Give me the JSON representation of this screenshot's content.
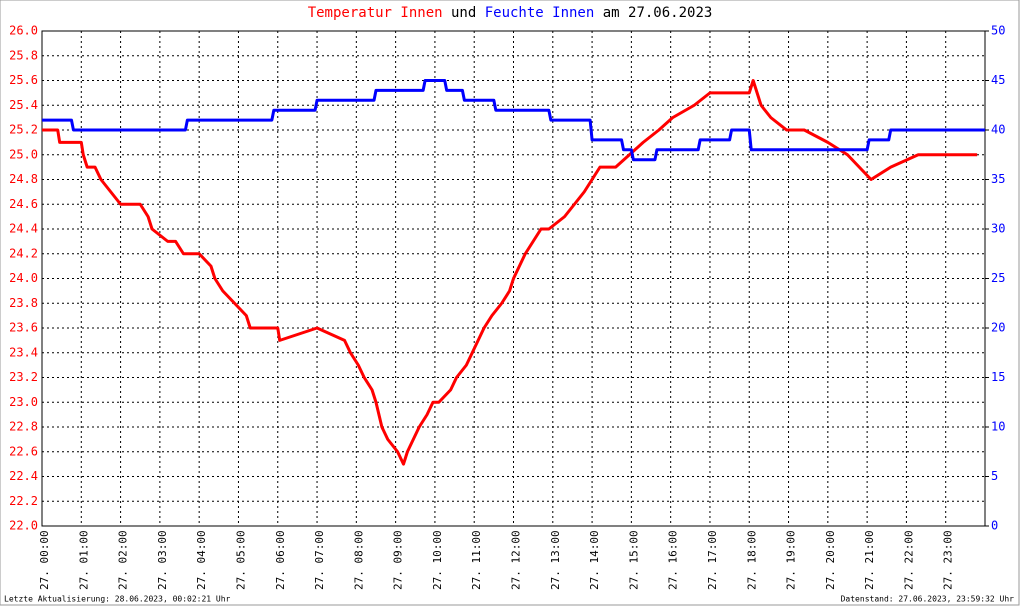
{
  "chart_data": {
    "type": "line",
    "title_connector": "und",
    "title_suffix": "am 27.06.2023",
    "footer_left": "Letzte Aktualisierung: 28.06.2023, 00:02:21 Uhr",
    "footer_right": "Datenstand: 27.06.2023, 23:59:32 Uhr",
    "grid": true,
    "xlim": [
      0,
      24
    ],
    "xticks": [
      {
        "value": 0,
        "label": "27. 00:00"
      },
      {
        "value": 1,
        "label": "27. 01:00"
      },
      {
        "value": 2,
        "label": "27. 02:00"
      },
      {
        "value": 3,
        "label": "27. 03:00"
      },
      {
        "value": 4,
        "label": "27. 04:00"
      },
      {
        "value": 5,
        "label": "27. 05:00"
      },
      {
        "value": 6,
        "label": "27. 06:00"
      },
      {
        "value": 7,
        "label": "27. 07:00"
      },
      {
        "value": 8,
        "label": "27. 08:00"
      },
      {
        "value": 9,
        "label": "27. 09:00"
      },
      {
        "value": 10,
        "label": "27. 10:00"
      },
      {
        "value": 11,
        "label": "27. 11:00"
      },
      {
        "value": 12,
        "label": "27. 12:00"
      },
      {
        "value": 13,
        "label": "27. 13:00"
      },
      {
        "value": 14,
        "label": "27. 14:00"
      },
      {
        "value": 15,
        "label": "27. 15:00"
      },
      {
        "value": 16,
        "label": "27. 16:00"
      },
      {
        "value": 17,
        "label": "27. 17:00"
      },
      {
        "value": 18,
        "label": "27. 18:00"
      },
      {
        "value": 19,
        "label": "27. 19:00"
      },
      {
        "value": 20,
        "label": "27. 20:00"
      },
      {
        "value": 21,
        "label": "27. 21:00"
      },
      {
        "value": 22,
        "label": "27. 22:00"
      },
      {
        "value": 23,
        "label": "27. 23:00"
      }
    ],
    "ylim": [
      22,
      26
    ],
    "yticks": [
      {
        "value": 22,
        "label": "22.0"
      },
      22.2,
      22.4,
      22.6,
      22.8,
      {
        "value": 23,
        "label": "23.0"
      },
      23.2,
      23.4,
      23.6,
      23.8,
      {
        "value": 24,
        "label": "24.0"
      },
      24.2,
      24.4,
      24.6,
      24.8,
      {
        "value": 25,
        "label": "25.0"
      },
      25.2,
      25.4,
      25.6,
      25.8,
      {
        "value": 26,
        "label": "26.0"
      }
    ],
    "y2lim": [
      0,
      50
    ],
    "y2ticks": [
      0,
      5,
      10,
      15,
      20,
      25,
      30,
      35,
      40,
      45,
      50
    ],
    "series": [
      {
        "name": "Temperatur Innen",
        "color": "#ff0000",
        "x": [
          0,
          0.4,
          0.45,
          1,
          1.05,
          1.15,
          1.35,
          1.5,
          1.75,
          2,
          2.5,
          2.7,
          2.8,
          3.2,
          3.4,
          3.6,
          4,
          4.3,
          4.4,
          4.6,
          4.9,
          5.2,
          5.3,
          5.5,
          6,
          6.05,
          7,
          7.7,
          7.85,
          8.05,
          8.2,
          8.4,
          8.5,
          8.65,
          8.8,
          9.05,
          9.2,
          9.3,
          9.45,
          9.6,
          9.8,
          9.95,
          10.1,
          10.4,
          10.55,
          10.8,
          10.95,
          11.1,
          11.25,
          11.45,
          11.7,
          11.9,
          12,
          12.15,
          12.3,
          12.5,
          12.7,
          12.9,
          13.3,
          13.55,
          13.8,
          14,
          14.2,
          14.6,
          14.95,
          15.3,
          15.7,
          16.05,
          16.6,
          17,
          18,
          18.1,
          18.3,
          18.55,
          18.95,
          19.4,
          20,
          20.5,
          21.1,
          21.6,
          22.3,
          23.8
        ],
        "values": [
          25.2,
          25.2,
          25.1,
          25.1,
          25.0,
          24.9,
          24.9,
          24.8,
          24.7,
          24.6,
          24.6,
          24.5,
          24.4,
          24.3,
          24.3,
          24.2,
          24.2,
          24.1,
          24.0,
          23.9,
          23.8,
          23.7,
          23.6,
          23.6,
          23.6,
          23.5,
          23.6,
          23.5,
          23.4,
          23.3,
          23.2,
          23.1,
          23.0,
          22.8,
          22.7,
          22.6,
          22.5,
          22.6,
          22.7,
          22.8,
          22.9,
          23.0,
          23.0,
          23.1,
          23.2,
          23.3,
          23.4,
          23.5,
          23.6,
          23.7,
          23.8,
          23.9,
          24.0,
          24.1,
          24.2,
          24.3,
          24.4,
          24.4,
          24.5,
          24.6,
          24.7,
          24.8,
          24.9,
          24.9,
          25.0,
          25.1,
          25.2,
          25.3,
          25.4,
          25.5,
          25.5,
          25.6,
          25.4,
          25.3,
          25.2,
          25.2,
          25.1,
          25.0,
          24.8,
          24.9,
          25.0,
          25.0
        ]
      },
      {
        "name": "Feuchte Innen",
        "color": "#0000ff",
        "axis": "y2",
        "x": [
          0,
          0.75,
          0.8,
          3.65,
          3.7,
          5.85,
          5.9,
          6.95,
          7,
          8.45,
          8.5,
          9.7,
          9.75,
          10.25,
          10.3,
          10.7,
          10.75,
          11.5,
          11.55,
          12.9,
          12.95,
          13.95,
          14,
          14.75,
          14.8,
          15,
          15.05,
          15.6,
          15.65,
          16.7,
          16.75,
          17.5,
          17.55,
          18,
          18.05,
          21,
          21.05,
          21.55,
          21.6,
          24
        ],
        "values": [
          41,
          41,
          40,
          40,
          41,
          41,
          42,
          42,
          43,
          43,
          44,
          44,
          45,
          45,
          44,
          44,
          43,
          43,
          42,
          42,
          41,
          41,
          39,
          39,
          38,
          38,
          37,
          37,
          38,
          38,
          39,
          39,
          40,
          40,
          38,
          38,
          39,
          39,
          40,
          40
        ]
      }
    ]
  }
}
